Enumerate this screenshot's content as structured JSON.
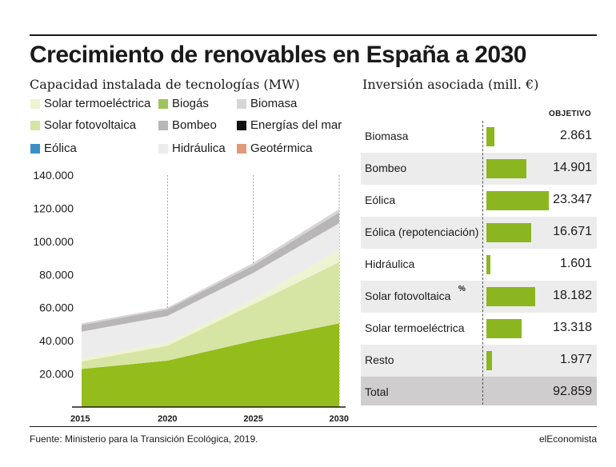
{
  "header": {
    "title": "Crecimiento de renovables en España a 2030",
    "subtitle_left": "Capacidad instalada de tecnologías (MW)",
    "subtitle_right": "Inversión asociada (mill. €)"
  },
  "legend": [
    {
      "label": "Solar termoeléctrica",
      "color": "#eef3d2"
    },
    {
      "label": "Biogás",
      "color": "#9dc45c"
    },
    {
      "label": "Biomasa",
      "color": "#d6d6d6"
    },
    {
      "label": "Solar fotovoltaica",
      "color": "#d6e5a3"
    },
    {
      "label": "Bombeo",
      "color": "#b8b6b6"
    },
    {
      "label": "Energías del mar",
      "color": "#111111"
    },
    {
      "label": "Eólica",
      "color": "#3b8fc6"
    },
    {
      "label": "Hidráulica",
      "color": "#ececec"
    },
    {
      "label": "Geotérmica",
      "color": "#e09a78"
    }
  ],
  "investment": {
    "header": "OBJETIVO",
    "rows": [
      {
        "label": "Biomasa",
        "value": "2.861",
        "amount": 2861
      },
      {
        "label": "Bombeo",
        "value": "14.901",
        "amount": 14901
      },
      {
        "label": "Eólica",
        "value": "23.347",
        "amount": 23347
      },
      {
        "label": "Eólica (repotenciación)",
        "value": "16.671",
        "amount": 16671
      },
      {
        "label": "Hidráulica",
        "value": "1.601",
        "amount": 1601
      },
      {
        "label": "Solar fotovoltaica",
        "value": "18.182",
        "amount": 18182
      },
      {
        "label": "Solar termoeléctrica",
        "value": "13.318",
        "amount": 13318
      },
      {
        "label": "Resto",
        "value": "1.977",
        "amount": 1977
      }
    ],
    "total_label": "Total",
    "total_value": "92.859",
    "stray_mark": "%"
  },
  "chart_data": {
    "type": "area",
    "stacked": true,
    "x": [
      2015,
      2020,
      2025,
      2030
    ],
    "x_ticks": [
      "2015",
      "2020",
      "2025",
      "2030"
    ],
    "y_ticks": [
      "20.000",
      "40.000",
      "60.000",
      "80.000",
      "100.000",
      "120.000",
      "140.000"
    ],
    "ylim": [
      0,
      140000
    ],
    "grid": "vertical dashed",
    "series": [
      {
        "name": "Eólica",
        "color": "#94bc1a",
        "values": [
          23000,
          28000,
          40000,
          50500
        ]
      },
      {
        "name": "Solar fotovoltaica",
        "color": "#d6e5a3",
        "values": [
          4500,
          9000,
          22000,
          37000
        ]
      },
      {
        "name": "Solar termoeléctrica",
        "color": "#eef3d2",
        "values": [
          2000,
          2000,
          3000,
          7500
        ]
      },
      {
        "name": "Hidráulica",
        "color": "#ececec",
        "values": [
          16000,
          16000,
          16000,
          16000
        ]
      },
      {
        "name": "Bombeo",
        "color": "#b8b6b6",
        "values": [
          4000,
          4000,
          4500,
          6500
        ]
      },
      {
        "name": "Biomasa",
        "color": "#d6d6d6",
        "values": [
          1000,
          1000,
          1500,
          2000
        ]
      }
    ]
  },
  "footer": {
    "source": "Fuente: Ministerio para la Transición Ecológica, 2019.",
    "brand": "elEconomista"
  }
}
